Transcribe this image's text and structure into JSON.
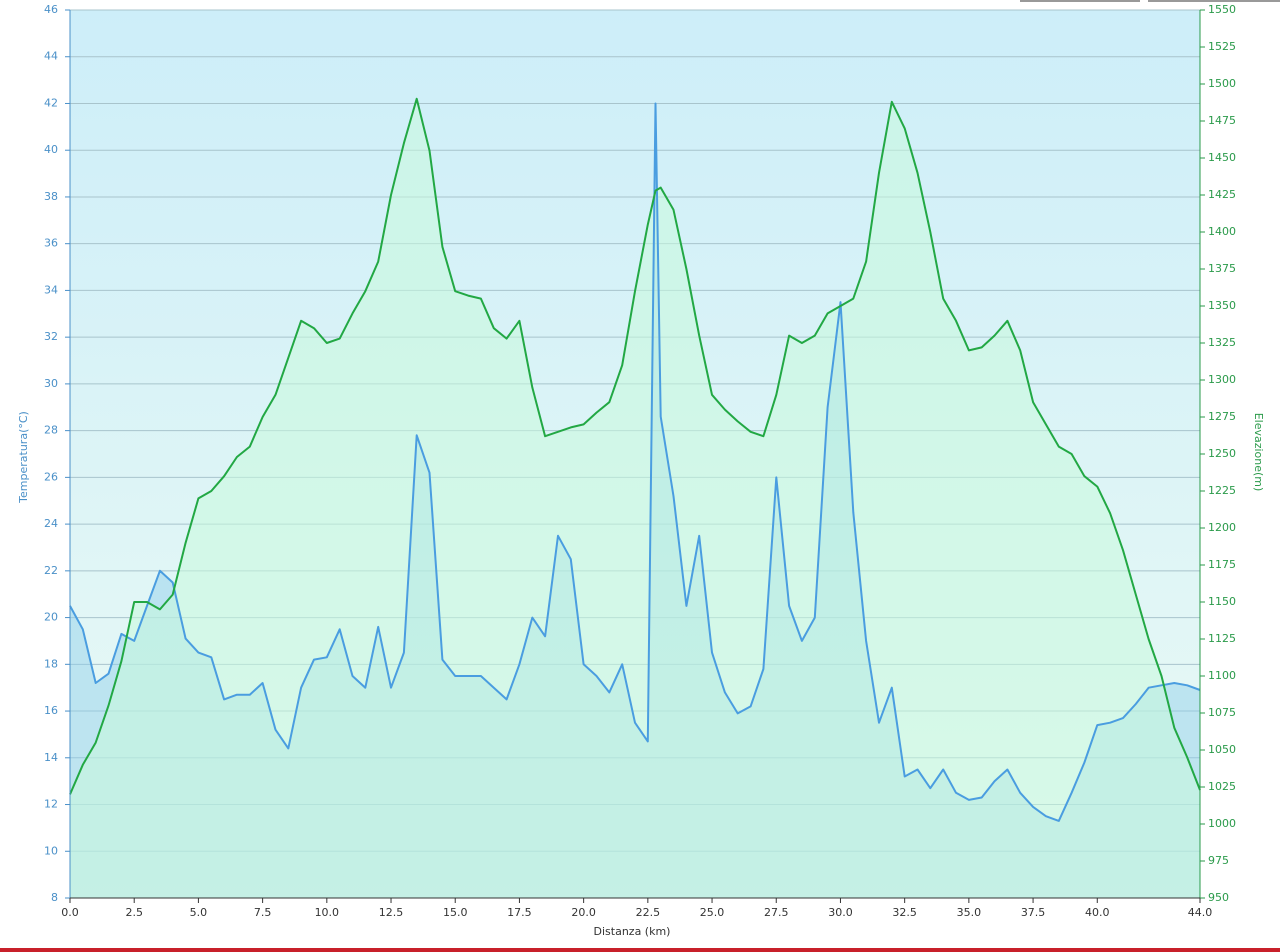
{
  "chart_data": {
    "type": "line",
    "xlabel": "Distanza  (km)",
    "ylabel": "Temperatura(°C)",
    "y2label": "Elevazione(m)",
    "x": [
      0,
      0.5,
      1,
      1.5,
      2,
      2.5,
      3,
      3.5,
      4,
      4.5,
      5,
      5.5,
      6,
      6.5,
      7,
      7.5,
      8,
      8.5,
      9,
      9.5,
      10,
      10.5,
      11,
      11.5,
      12,
      12.5,
      13,
      13.5,
      14,
      14.5,
      15,
      15.5,
      16,
      16.5,
      17,
      17.5,
      18,
      18.5,
      19,
      19.5,
      20,
      20.5,
      21,
      21.5,
      22,
      22.5,
      22.8,
      23,
      23.5,
      24,
      24.5,
      25,
      25.5,
      26,
      26.5,
      27,
      27.5,
      28,
      28.5,
      29,
      29.5,
      30,
      30.5,
      31,
      31.5,
      32,
      32.5,
      33,
      33.5,
      34,
      34.5,
      35,
      35.5,
      36,
      36.5,
      37,
      37.5,
      38,
      38.5,
      39,
      39.5,
      40,
      40.5,
      41,
      41.5,
      42,
      42.5,
      43,
      43.5,
      44
    ],
    "series": [
      {
        "name": "Temperatura",
        "color": "#4a9de0",
        "fill": "rgba(140,205,235,0.45)",
        "values": [
          20.5,
          19.5,
          17.2,
          17.6,
          19.3,
          19,
          20.5,
          22,
          21.5,
          19.1,
          18.5,
          18.3,
          16.5,
          16.7,
          16.7,
          17.2,
          15.2,
          14.4,
          17,
          18.2,
          18.3,
          19.5,
          17.5,
          17,
          19.6,
          17,
          18.5,
          27.8,
          26.2,
          18.2,
          17.5,
          17.5,
          17.5,
          17,
          16.5,
          18,
          20,
          19.2,
          23.5,
          22.5,
          18,
          17.5,
          16.8,
          18,
          15.5,
          14.7,
          42,
          28.6,
          25.2,
          20.5,
          23.5,
          18.5,
          16.8,
          15.9,
          16.2,
          17.8,
          26,
          20.5,
          19,
          20,
          29,
          33.5,
          24.5,
          19,
          15.5,
          17,
          13.2,
          13.5,
          12.7,
          13.5,
          12.5,
          12.2,
          12.3,
          13,
          13.5,
          12.5,
          11.9,
          11.5,
          11.3,
          12.5,
          13.8,
          15.4,
          15.5,
          15.7,
          16.3,
          17,
          17.1,
          17.2,
          17.1,
          16.9
        ]
      },
      {
        "name": "Elevazione",
        "color": "#22a844",
        "fill": "rgba(200,250,220,0.55)",
        "axis": "y2",
        "values": [
          1020,
          1040,
          1055,
          1080,
          1110,
          1150,
          1150,
          1145,
          1155,
          1190,
          1220,
          1225,
          1235,
          1248,
          1255,
          1275,
          1290,
          1315,
          1340,
          1335,
          1325,
          1328,
          1345,
          1360,
          1380,
          1425,
          1460,
          1490,
          1455,
          1390,
          1360,
          1357,
          1355,
          1335,
          1328,
          1340,
          1295,
          1262,
          1265,
          1268,
          1270,
          1278,
          1285,
          1310,
          1360,
          1405,
          1428,
          1430,
          1415,
          1375,
          1330,
          1290,
          1280,
          1272,
          1265,
          1262,
          1290,
          1330,
          1325,
          1330,
          1345,
          1350,
          1355,
          1380,
          1440,
          1488,
          1470,
          1440,
          1400,
          1355,
          1340,
          1320,
          1322,
          1330,
          1340,
          1320,
          1285,
          1270,
          1255,
          1250,
          1235,
          1228,
          1210,
          1185,
          1155,
          1125,
          1100,
          1065,
          1045,
          1023
        ]
      }
    ],
    "xlim": [
      0,
      44
    ],
    "xticks": [
      {
        "value": 0,
        "label": "0.0"
      },
      2.5,
      {
        "value": 5,
        "label": "5.0"
      },
      7.5,
      {
        "value": 10,
        "label": "10.0"
      },
      12.5,
      {
        "value": 15,
        "label": "15.0"
      },
      17.5,
      {
        "value": 20,
        "label": "20.0"
      },
      22.5,
      {
        "value": 25,
        "label": "25.0"
      },
      27.5,
      {
        "value": 30,
        "label": "30.0"
      },
      32.5,
      {
        "value": 35,
        "label": "35.0"
      },
      37.5,
      {
        "value": 40,
        "label": "40.0"
      },
      {
        "value": 44,
        "label": "44.0"
      }
    ],
    "ylim": [
      8,
      46
    ],
    "yticks": [
      8,
      10,
      12,
      14,
      16,
      18,
      20,
      22,
      24,
      26,
      28,
      30,
      32,
      34,
      36,
      38,
      40,
      42,
      44,
      46
    ],
    "y2lim": [
      950,
      1550
    ],
    "y2ticks": [
      950,
      975,
      1000,
      1025,
      1050,
      1075,
      1100,
      1125,
      1150,
      1175,
      1200,
      1225,
      1250,
      1275,
      1300,
      1325,
      1350,
      1375,
      1400,
      1425,
      1450,
      1475,
      1500,
      1525,
      1550
    ],
    "grid": true
  }
}
